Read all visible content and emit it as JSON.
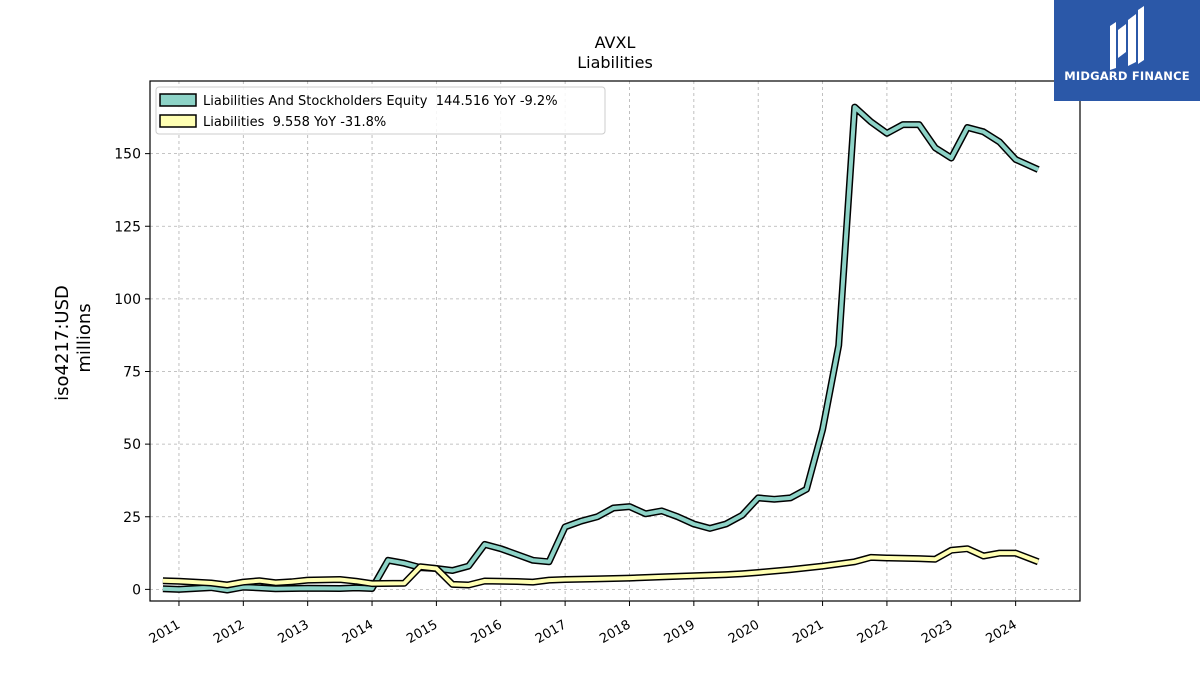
{
  "brand": {
    "name": "MIDGARD FINANCE",
    "bg_color": "#2b58a8"
  },
  "chart_data": {
    "type": "line",
    "title": "AVXL",
    "subtitle": "Liabilities",
    "ylabel_line1": "iso4217:USD",
    "ylabel_line2": "millions",
    "xlim": [
      2010.55,
      2025.0
    ],
    "ylim": [
      -4,
      175
    ],
    "yticks": [
      0,
      25,
      50,
      75,
      100,
      125,
      150
    ],
    "xticks": [
      "2011",
      "2012",
      "2013",
      "2014",
      "2015",
      "2016",
      "2017",
      "2018",
      "2019",
      "2020",
      "2021",
      "2022",
      "2023",
      "2024"
    ],
    "grid": true,
    "legend_position": "top-left",
    "series": [
      {
        "name": "Liabilities And Stockholders Equity  144.516 YoY -9.2%",
        "color": "#8dd3c7",
        "x": [
          2010.75,
          2011.0,
          2011.5,
          2011.75,
          2012.0,
          2012.25,
          2012.5,
          2012.75,
          2013.0,
          2013.5,
          2013.75,
          2014.0,
          2014.25,
          2014.5,
          2014.75,
          2015.0,
          2015.25,
          2015.5,
          2015.75,
          2016.0,
          2016.25,
          2016.5,
          2016.75,
          2017.0,
          2017.25,
          2017.5,
          2017.75,
          2018.0,
          2018.25,
          2018.5,
          2018.75,
          2019.0,
          2019.25,
          2019.5,
          2019.75,
          2020.0,
          2020.25,
          2020.5,
          2020.75,
          2021.0,
          2021.25,
          2021.5,
          2021.75,
          2022.0,
          2022.25,
          2022.5,
          2022.75,
          2023.0,
          2023.25,
          2023.5,
          2023.75,
          2024.0,
          2024.35
        ],
        "values": [
          0.2,
          0.0,
          0.6,
          -0.2,
          0.8,
          0.5,
          0.2,
          0.3,
          0.4,
          0.3,
          0.5,
          0.3,
          10.0,
          9.0,
          7.5,
          7.2,
          6.5,
          8.0,
          15.5,
          14.0,
          12.0,
          10.0,
          9.5,
          21.5,
          23.5,
          25.0,
          28.0,
          28.5,
          26.0,
          27.0,
          25.0,
          22.5,
          21.0,
          22.5,
          25.5,
          31.5,
          31.0,
          31.5,
          34.5,
          55.0,
          84.0,
          166.0,
          161.0,
          157.0,
          160.0,
          160.0,
          152.0,
          148.5,
          159.0,
          157.5,
          154.0,
          148.0,
          144.5
        ]
      },
      {
        "name": "Liabilities  9.558 YoY -31.8%",
        "color": "#ffffb3",
        "x": [
          2010.75,
          2011.0,
          2011.5,
          2011.75,
          2012.0,
          2012.25,
          2012.5,
          2012.75,
          2013.0,
          2013.5,
          2013.75,
          2014.0,
          2014.5,
          2014.75,
          2015.0,
          2015.25,
          2015.5,
          2015.75,
          2016.0,
          2016.25,
          2016.5,
          2016.75,
          2017.0,
          2017.5,
          2018.0,
          2018.5,
          2019.0,
          2019.5,
          2019.75,
          2020.0,
          2020.5,
          2021.0,
          2021.5,
          2021.75,
          2022.0,
          2022.5,
          2022.75,
          2023.0,
          2023.25,
          2023.5,
          2023.75,
          2024.0,
          2024.35
        ],
        "values": [
          3.0,
          2.8,
          2.2,
          1.5,
          2.5,
          3.0,
          2.3,
          2.6,
          3.2,
          3.4,
          2.8,
          2.0,
          2.1,
          7.8,
          7.2,
          1.7,
          1.5,
          2.9,
          2.8,
          2.7,
          2.5,
          3.2,
          3.4,
          3.6,
          3.9,
          4.3,
          4.7,
          5.1,
          5.4,
          5.8,
          6.8,
          8.0,
          9.5,
          11.0,
          10.8,
          10.6,
          10.4,
          13.5,
          14.0,
          11.5,
          12.5,
          12.5,
          9.5
        ]
      }
    ]
  }
}
